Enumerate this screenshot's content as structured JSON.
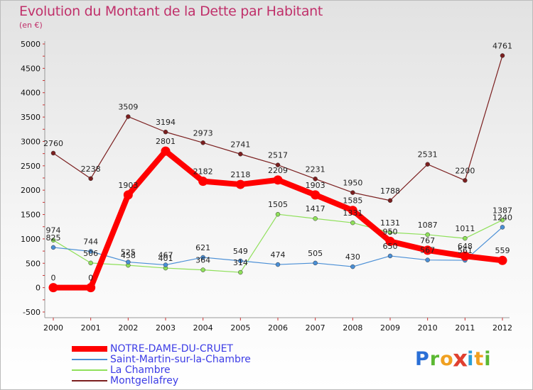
{
  "chart_data": {
    "type": "line",
    "title": "Evolution du Montant de la Dette par Habitant",
    "subtitle": "(en €)",
    "x": [
      "2000",
      "2001",
      "2002",
      "2003",
      "2004",
      "2005",
      "2006",
      "2007",
      "2008",
      "2009",
      "2010",
      "2011",
      "2012"
    ],
    "ylim": [
      -500,
      5000
    ],
    "yticks": [
      -500,
      0,
      500,
      1000,
      1500,
      2000,
      2500,
      3000,
      3500,
      4000,
      4500,
      5000
    ],
    "grid": false,
    "legend": "bottom-left",
    "series": [
      {
        "name": "NOTRE-DAME-DU-CRUET",
        "color": "#ff0000",
        "values": [
          0,
          0,
          1903,
          2801,
          2182,
          2118,
          2209,
          1903,
          1585,
          950,
          767,
          648,
          559
        ]
      },
      {
        "name": "Saint-Martin-sur-la-Chambre",
        "color": "#4a8fd6",
        "values": [
          825,
          744,
          525,
          467,
          621,
          549,
          474,
          505,
          430,
          650,
          567,
          561,
          1240
        ]
      },
      {
        "name": "La Chambre",
        "color": "#8fe05a",
        "values": [
          974,
          506,
          458,
          401,
          364,
          314,
          1505,
          1417,
          1331,
          1131,
          1087,
          1011,
          1387
        ]
      },
      {
        "name": "Montgellafrey",
        "color": "#7b1f1f",
        "values": [
          2760,
          2238,
          3509,
          3194,
          2973,
          2741,
          2517,
          2231,
          1950,
          1788,
          2531,
          2200,
          4761
        ]
      }
    ]
  },
  "logo": {
    "letters": [
      "P",
      "r",
      "o",
      "x",
      "i",
      "t",
      "i"
    ],
    "colors": [
      "#2a6fd6",
      "#5bb832",
      "#f0a020",
      "#e04030",
      "#2a9fd6",
      "#f0a020",
      "#5bb832"
    ]
  }
}
